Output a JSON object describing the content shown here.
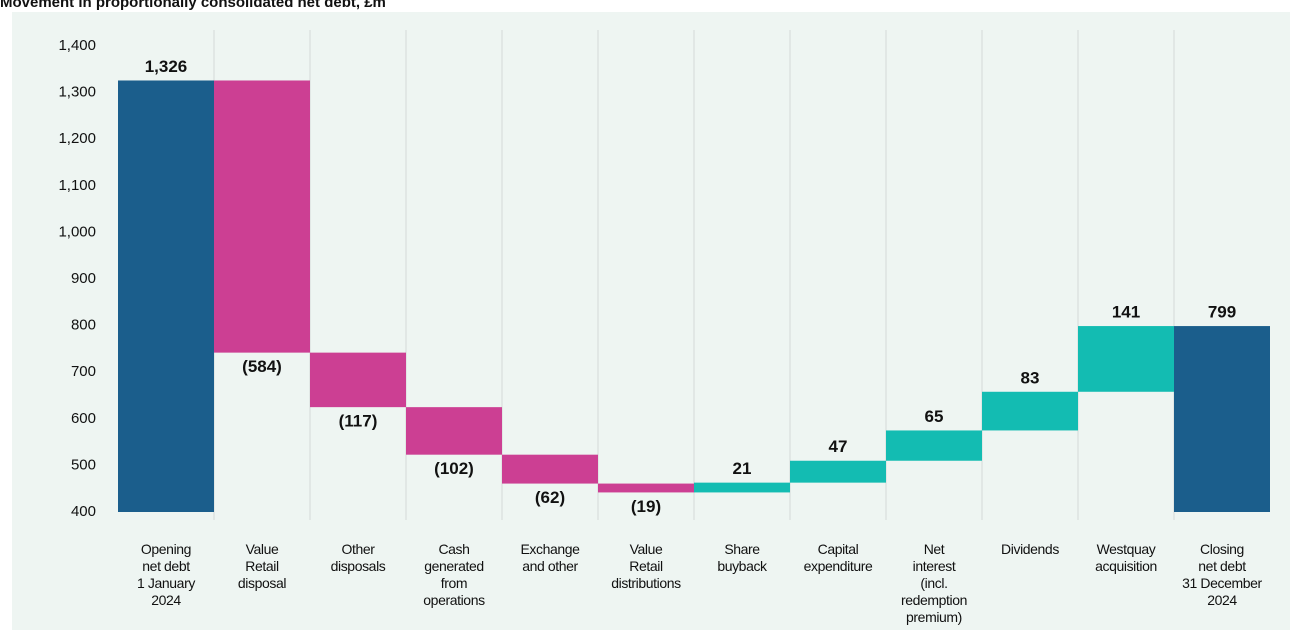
{
  "chart_data": {
    "type": "waterfall",
    "title": "Movement in proportionally consolidated net debt, £m",
    "categories": [
      "Opening\nnet debt\n1 January\n2024",
      "Value\nRetail\ndisposal",
      "Other\ndisposals",
      "Cash\ngenerated\nfrom\noperations",
      "Exchange\nand other",
      "Value\nRetail\ndistributions",
      "Share\nbuyback",
      "Capital\nexpenditure",
      "Net\ninterest\n(incl. redemption\npremium)",
      "Dividends",
      "Westquay\nacquisition",
      "Closing\nnet debt\n31 December\n2024"
    ],
    "values": [
      1326,
      -584,
      -117,
      -102,
      -62,
      -19,
      21,
      47,
      65,
      83,
      141,
      799
    ],
    "value_labels": [
      "1,326",
      "(584)",
      "(117)",
      "(102)",
      "(62)",
      "(19)",
      "21",
      "47",
      "65",
      "83",
      "141",
      "799"
    ],
    "colors": [
      "#1b5e8c",
      "#cc3f93",
      "#cc3f93",
      "#cc3f93",
      "#cc3f93",
      "#cc3f93",
      "#13bcb2",
      "#13bcb2",
      "#13bcb2",
      "#13bcb2",
      "#13bcb2",
      "#1b5e8c"
    ],
    "ylim": [
      400,
      1400
    ],
    "yticks": [
      400,
      500,
      600,
      700,
      800,
      900,
      {
        "value": 1000,
        "label": "1,000"
      },
      {
        "value": 1100,
        "label": "1,100"
      },
      {
        "value": 1200,
        "label": "1,200"
      },
      {
        "value": 1300,
        "label": "1,300"
      },
      {
        "value": 1400,
        "label": "1,400"
      }
    ]
  }
}
